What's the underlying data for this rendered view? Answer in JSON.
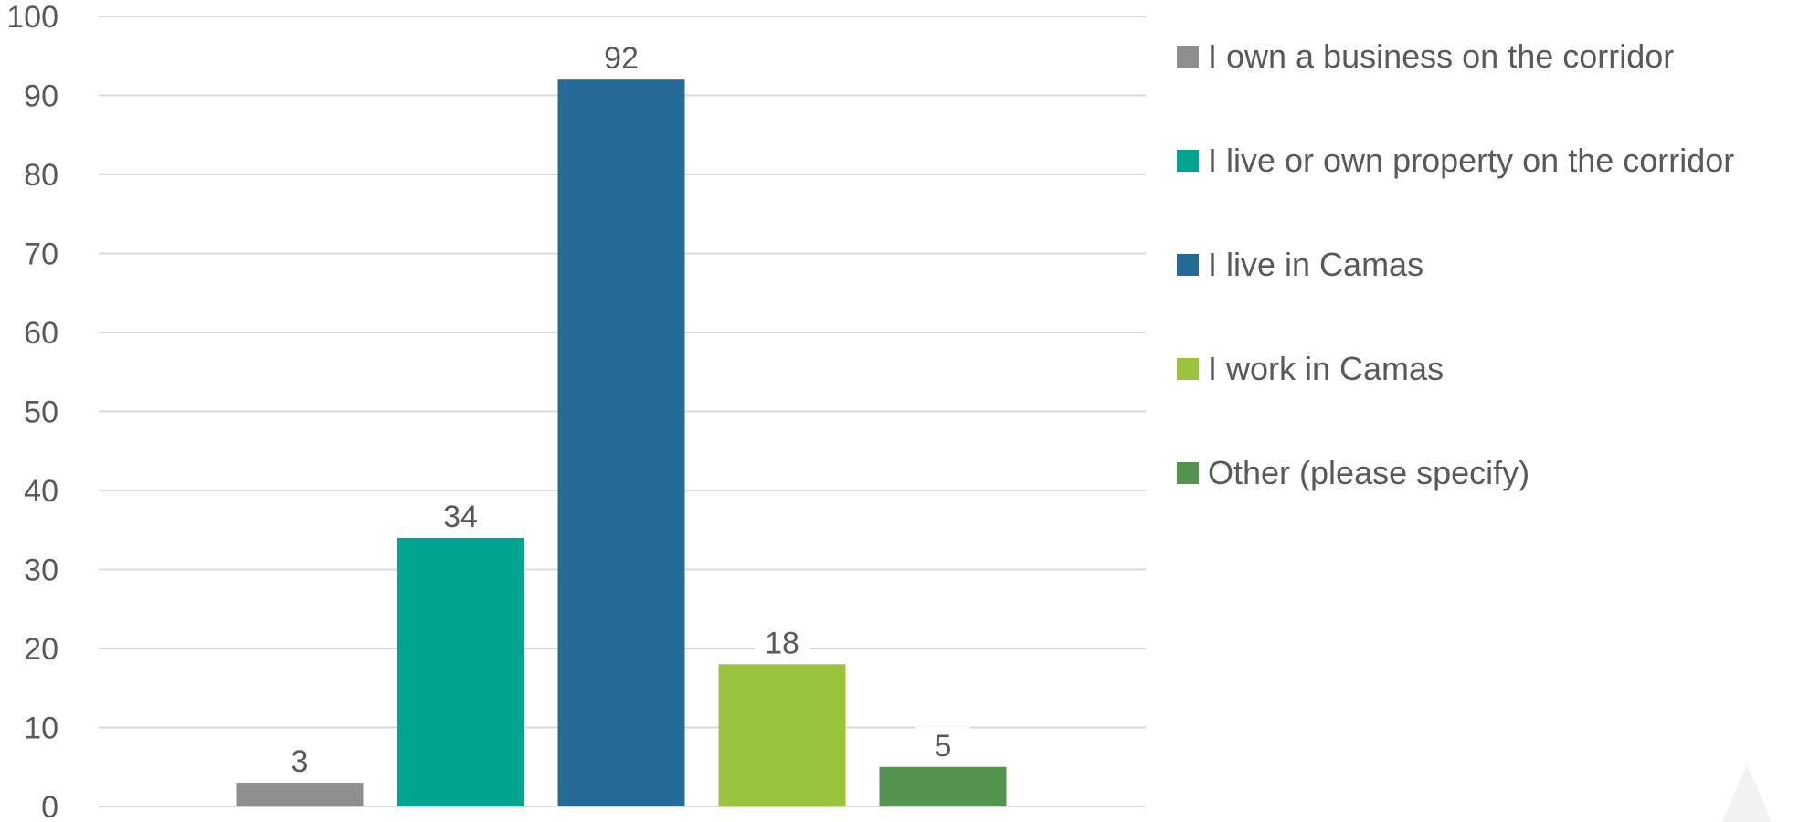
{
  "chart_data": {
    "type": "bar",
    "categories": [
      "I own a business on the corridor",
      "I live or own property on the corridor",
      "I live in Camas",
      "I work in Camas",
      "Other (please specify)"
    ],
    "values": [
      3,
      34,
      92,
      18,
      5
    ],
    "colors": [
      "#8f8f8f",
      "#00a591",
      "#246c97",
      "#9bc33c",
      "#54944f"
    ],
    "ylim": [
      0,
      100
    ],
    "yticks": [
      0,
      10,
      20,
      30,
      40,
      50,
      60,
      70,
      80,
      90,
      100
    ],
    "grid": true,
    "data_labels": true,
    "legend_position": "right",
    "title": "",
    "xlabel": "",
    "ylabel": ""
  }
}
